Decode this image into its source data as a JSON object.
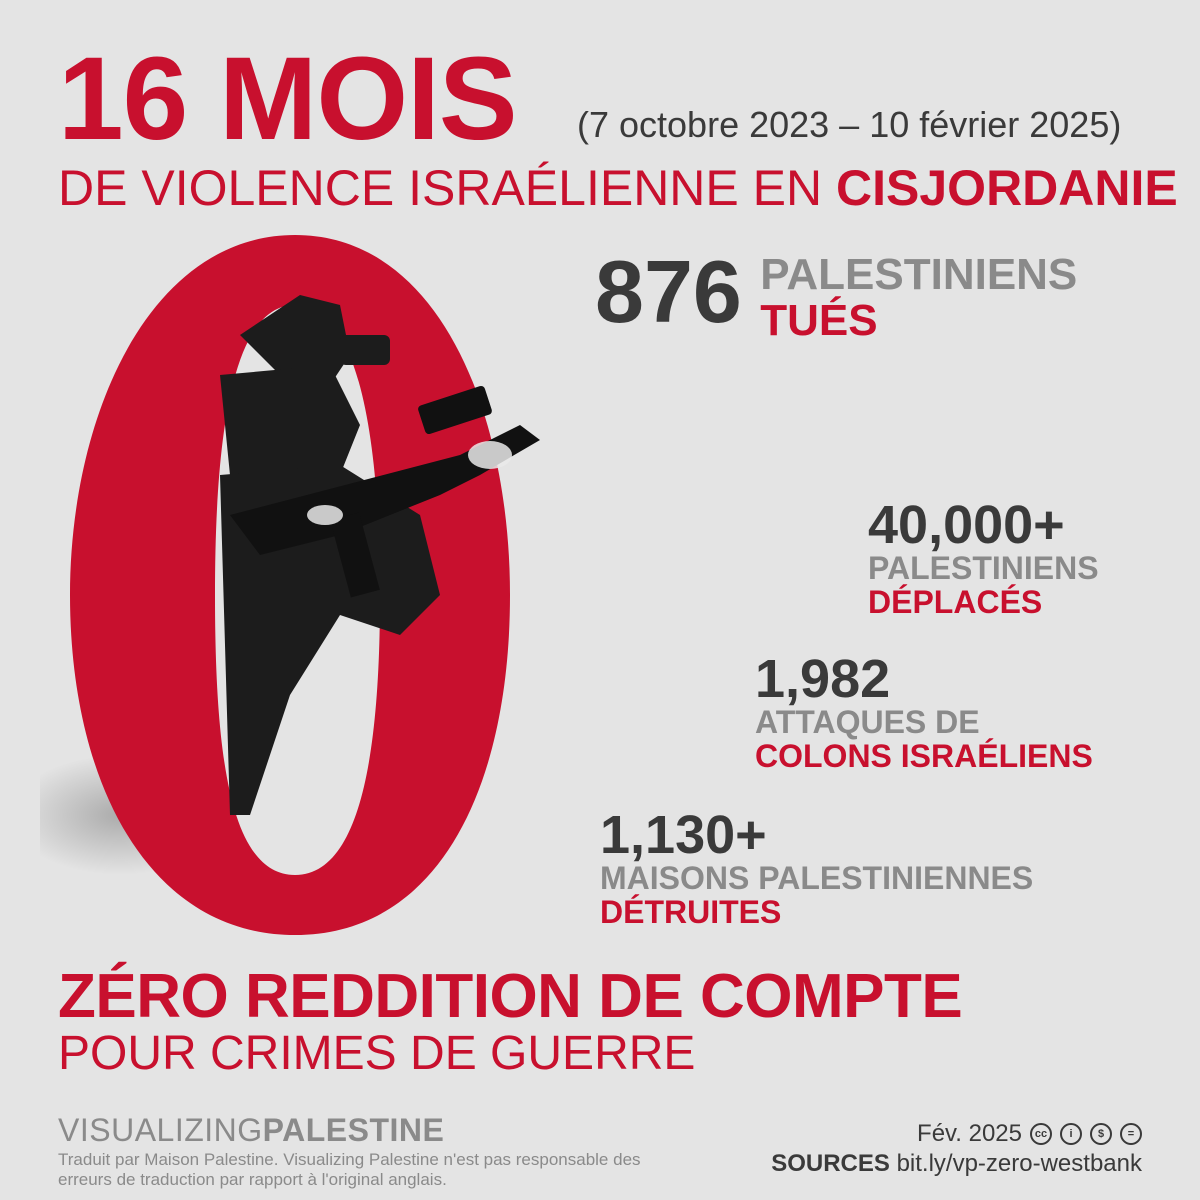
{
  "header": {
    "title": "16 MOIS",
    "date_range": "(7 octobre 2023 – 10 février 2025)",
    "subtitle_prefix": "DE VIOLENCE ISRAÉLIENNE EN ",
    "subtitle_place": "CISJORDANIE"
  },
  "stats": [
    {
      "value": "876",
      "line1": "PALESTINIENS",
      "line2": "TUÉS"
    },
    {
      "value": "40,000+",
      "line1": "PALESTINIENS",
      "line2": "DÉPLACÉS"
    },
    {
      "value": "1,982",
      "line1": "ATTAQUES DE",
      "line2": "COLONS ISRAÉLIENS"
    },
    {
      "value": "1,130+",
      "line1": "MAISONS PALESTINIENNES",
      "line2": "DÉTRUITES"
    }
  ],
  "headline": {
    "main": "ZÉRO REDDITION DE COMPTE",
    "sub": "POUR CRIMES DE GUERRE"
  },
  "footer": {
    "brand_light": "VISUALIZING",
    "brand_bold": "PALESTINE",
    "disclaimer": "Traduit par Maison Palestine. Visualizing Palestine n'est pas responsable des erreurs de traduction par rapport à l'original anglais.",
    "date": "Fév. 2025",
    "license_icons": [
      "cc-icon",
      "by-icon",
      "nc-icon",
      "nd-icon"
    ],
    "sources_label": "SOURCES",
    "sources_url": "bit.ly/vp-zero-westbank"
  },
  "colors": {
    "accent": "#c8102e",
    "dark": "#3a3a3a",
    "grey": "#8a8a8a",
    "background": "#e4e4e4"
  }
}
